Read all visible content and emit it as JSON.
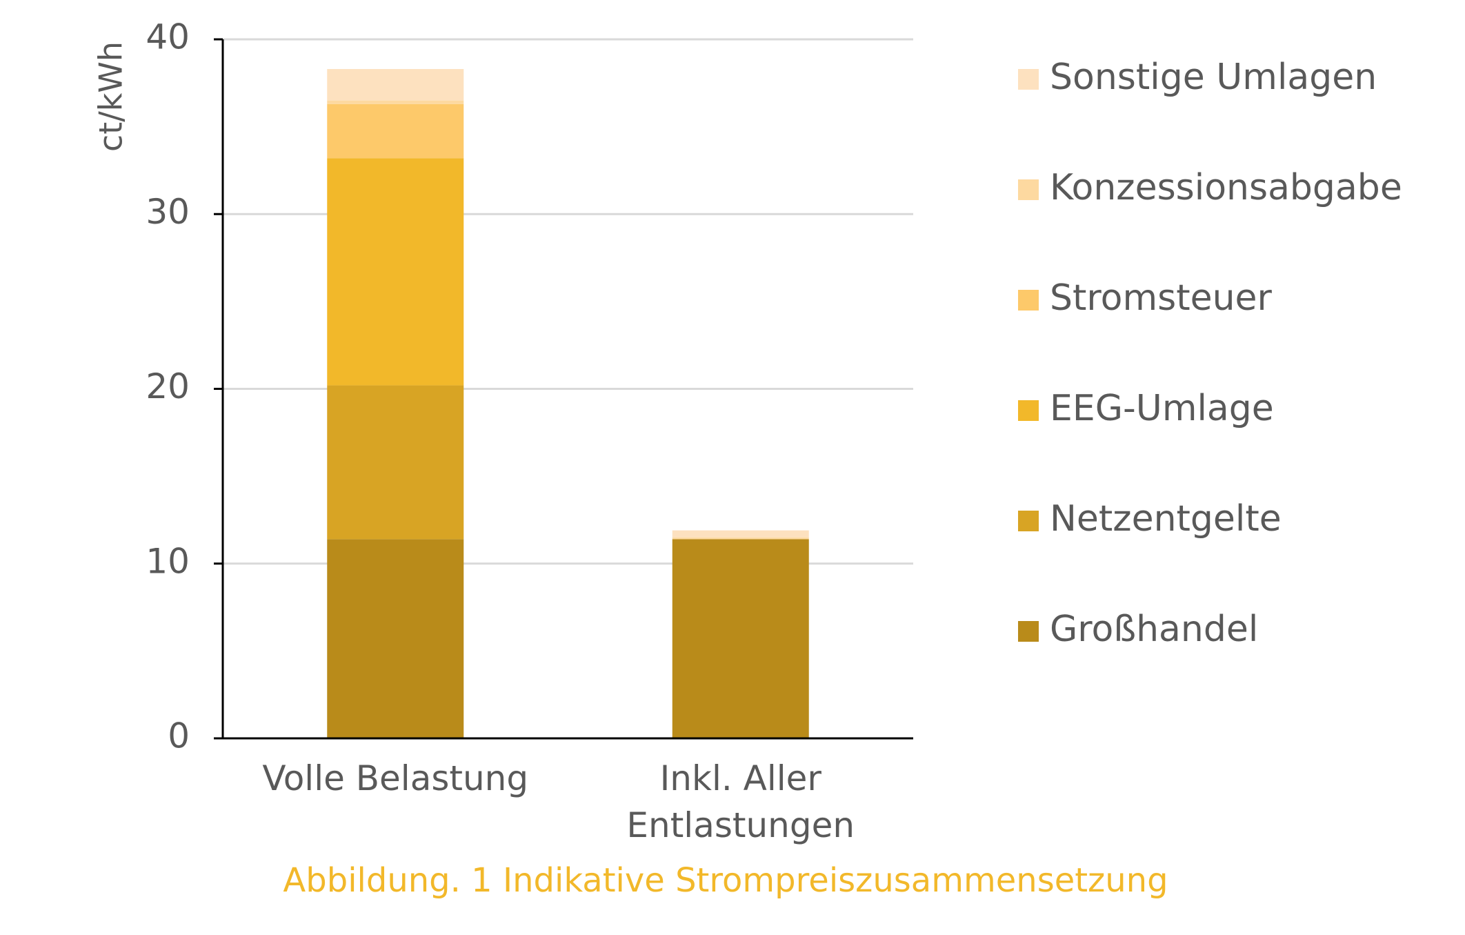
{
  "chart_data": {
    "type": "bar",
    "stacked": true,
    "categories": [
      [
        "Volle Belastung"
      ],
      [
        "Inkl. Aller",
        "Entlastungen"
      ]
    ],
    "series": [
      {
        "name": "Großhandel",
        "color": "#B98B1A",
        "values": [
          11.4,
          11.4
        ]
      },
      {
        "name": "Netzentgelte",
        "color": "#D8A424",
        "values": [
          8.8,
          0
        ]
      },
      {
        "name": "EEG-Umlage",
        "color": "#F2B82A",
        "values": [
          13.0,
          0
        ]
      },
      {
        "name": "Stromsteuer",
        "color": "#FDC96A",
        "values": [
          3.1,
          0
        ]
      },
      {
        "name": "Konzessionsabgabe",
        "color": "#FDD9A0",
        "values": [
          0.2,
          0.1
        ]
      },
      {
        "name": "Sonstige Umlagen",
        "color": "#FDE1BF",
        "values": [
          1.8,
          0.4
        ]
      }
    ],
    "legend_order": [
      "Sonstige Umlagen",
      "Konzessionsabgabe",
      "Stromsteuer",
      "EEG-Umlage",
      "Netzentgelte",
      "Großhandel"
    ],
    "legend_position": "right",
    "ylabel": "ct/kWh",
    "xlabel": "",
    "ylim": [
      0,
      40
    ],
    "yticks": [
      "0",
      "10",
      "20",
      "30",
      "40"
    ],
    "grid": true,
    "caption": "Abbildung. 1 Indikative Strompreiszusammensetzung",
    "caption_color": "#F2B82A"
  }
}
